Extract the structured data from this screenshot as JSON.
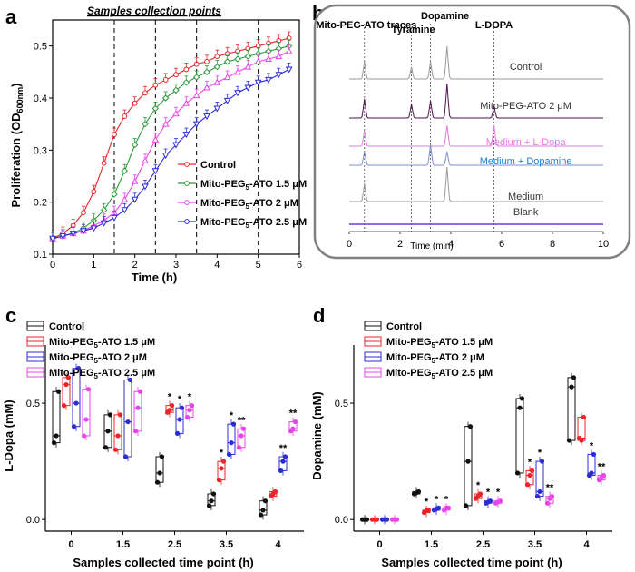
{
  "panels": {
    "a": "a",
    "b": "b",
    "c": "c",
    "d": "d"
  },
  "colors": {
    "black": "#1a1a1a",
    "red": "#e8262a",
    "green": "#2a9a3a",
    "magenta": "#e845e8",
    "blue": "#2b2bd6",
    "c_black": "#111111",
    "c_red": "#e8262a",
    "c_blue": "#2b2bd6",
    "c_magenta": "#e845e8",
    "hplc_grey": "#9a9a9a",
    "hplc_dark": "#4a1050",
    "hplc_pink": "#e27ae2",
    "hplc_lightpink": "#d7a6d7",
    "hplc_blue": "#7f8fd0",
    "hplc_purple": "#8a2ad6",
    "hplc_blank": "#6a3fd0"
  },
  "chart_data": [
    {
      "id": "a",
      "type": "line",
      "title": "Samples collection points",
      "xlabel": "Time (h)",
      "ylabel": "Proliferation (OD600nm)",
      "xlim": [
        0,
        6
      ],
      "ylim": [
        0.1,
        0.55
      ],
      "xticks": [
        "0",
        "1",
        "2",
        "3",
        "4",
        "5",
        "6"
      ],
      "yticks": [
        "0.1",
        "0.2",
        "0.3",
        "0.4",
        "0.5"
      ],
      "vlines": [
        1.5,
        2.5,
        3.5,
        5.0
      ],
      "x": [
        0.0,
        0.25,
        0.5,
        0.75,
        1.0,
        1.25,
        1.5,
        1.75,
        2.0,
        2.25,
        2.5,
        2.75,
        3.0,
        3.25,
        3.5,
        3.75,
        4.0,
        4.25,
        4.5,
        4.75,
        5.0,
        5.25,
        5.5,
        5.75
      ],
      "series": [
        {
          "name": "Control",
          "color": "red",
          "marker": "circle",
          "values": [
            0.13,
            0.14,
            0.155,
            0.18,
            0.22,
            0.275,
            0.33,
            0.365,
            0.39,
            0.41,
            0.425,
            0.435,
            0.445,
            0.455,
            0.465,
            0.47,
            0.48,
            0.485,
            0.49,
            0.495,
            0.5,
            0.505,
            0.51,
            0.515
          ]
        },
        {
          "name": "Mito-PEG5-ATO 1.5 μM",
          "color": "green",
          "marker": "diamond",
          "values": [
            0.13,
            0.135,
            0.14,
            0.15,
            0.165,
            0.185,
            0.215,
            0.26,
            0.31,
            0.35,
            0.38,
            0.4,
            0.415,
            0.43,
            0.44,
            0.45,
            0.46,
            0.47,
            0.475,
            0.48,
            0.485,
            0.49,
            0.495,
            0.5
          ]
        },
        {
          "name": "Mito-PEG5-ATO 2 μM",
          "color": "magenta",
          "marker": "triangle",
          "values": [
            0.13,
            0.135,
            0.14,
            0.145,
            0.155,
            0.165,
            0.18,
            0.205,
            0.24,
            0.28,
            0.32,
            0.35,
            0.37,
            0.39,
            0.405,
            0.42,
            0.43,
            0.44,
            0.45,
            0.46,
            0.47,
            0.475,
            0.48,
            0.49
          ]
        },
        {
          "name": "Mito-PEG5-ATO 2.5 μM",
          "color": "blue",
          "marker": "tri-down",
          "values": [
            0.13,
            0.135,
            0.14,
            0.145,
            0.15,
            0.16,
            0.17,
            0.185,
            0.205,
            0.23,
            0.26,
            0.29,
            0.31,
            0.33,
            0.35,
            0.365,
            0.38,
            0.395,
            0.41,
            0.42,
            0.43,
            0.435,
            0.445,
            0.455
          ]
        }
      ],
      "legend": [
        "Control",
        "Mito-PEG5-ATO 1.5 μM",
        "Mito-PEG5-ATO 2 μM",
        "Mito-PEG5-ATO 2.5 μM"
      ]
    },
    {
      "id": "b",
      "type": "line",
      "xlabel": "Time (min)",
      "xlim": [
        0,
        10
      ],
      "xticks": [
        "0",
        "2",
        "4",
        "6",
        "8",
        "10"
      ],
      "peak_labels": [
        "Mito-PEG-ATO traces",
        "Tyramine",
        "Dopamine",
        "L-DOPA"
      ],
      "peak_positions": [
        0.6,
        2.45,
        3.2,
        5.7
      ],
      "traces": [
        {
          "name": "Control",
          "color": "hplc_grey",
          "label_color": "#333333",
          "peaks": [
            [
              0.6,
              0.5
            ],
            [
              2.45,
              0.35
            ],
            [
              3.2,
              0.5
            ],
            [
              3.85,
              0.95
            ]
          ]
        },
        {
          "name": "Mito-PEG-ATO 2 μM",
          "color": "hplc_dark",
          "label_color": "#333333",
          "peaks": [
            [
              0.6,
              0.55
            ],
            [
              2.45,
              0.4
            ],
            [
              3.2,
              0.5
            ],
            [
              3.85,
              1.0
            ],
            [
              5.7,
              0.35
            ]
          ]
        },
        {
          "name": "Medium + L-Dopa",
          "color": "hplc_pink",
          "label_color": "#e27ae2",
          "peaks": [
            [
              0.6,
              0.45
            ],
            [
              3.85,
              0.6
            ],
            [
              5.7,
              0.6
            ]
          ]
        },
        {
          "name": "Medium + Dopamine",
          "color": "hplc_blue",
          "label_color": "#1f7fc7",
          "peaks": [
            [
              0.6,
              0.4
            ],
            [
              3.2,
              0.6
            ],
            [
              3.85,
              0.4
            ]
          ]
        },
        {
          "name": "Medium",
          "color": "hplc_grey",
          "label_color": "#333333",
          "peaks": [
            [
              0.6,
              0.5
            ],
            [
              3.85,
              1.0
            ]
          ]
        },
        {
          "name": "Blank",
          "color": "hplc_blank",
          "label_color": "#333333",
          "peaks": []
        }
      ]
    },
    {
      "id": "c",
      "type": "box",
      "xlabel": "Samples collected time point (h)",
      "ylabel": "L-Dopa (mM)",
      "ylim": [
        -0.05,
        0.75
      ],
      "yticks": [
        "0.0",
        "0.5"
      ],
      "categories": [
        "0",
        "1.5",
        "2.5",
        "3.5",
        "4"
      ],
      "legend": [
        "Control",
        "Mito-PEG5-ATO 1.5 μM",
        "Mito-PEG5-ATO 2 μM",
        "Mito-PEG5-ATO 2.5 μM"
      ],
      "series": [
        {
          "name": "Control",
          "color": "c_black",
          "groups": [
            [
              0.33,
              0.36,
              0.55
            ],
            [
              0.31,
              0.38,
              0.45
            ],
            [
              0.16,
              0.2,
              0.27
            ],
            [
              0.06,
              0.08,
              0.11
            ],
            [
              0.02,
              0.04,
              0.08
            ]
          ]
        },
        {
          "name": "Mito-PEG5-ATO 1.5 μM",
          "color": "c_red",
          "groups": [
            [
              0.49,
              0.58,
              0.61
            ],
            [
              0.3,
              0.36,
              0.45
            ],
            [
              0.46,
              0.47,
              0.49
            ],
            [
              0.17,
              0.22,
              0.25
            ],
            [
              0.1,
              0.11,
              0.12
            ]
          ]
        },
        {
          "name": "Mito-PEG5-ATO 2 μM",
          "color": "c_blue",
          "groups": [
            [
              0.4,
              0.5,
              0.65
            ],
            [
              0.27,
              0.42,
              0.6
            ],
            [
              0.37,
              0.43,
              0.48
            ],
            [
              0.28,
              0.33,
              0.41
            ],
            [
              0.21,
              0.25,
              0.27
            ]
          ]
        },
        {
          "name": "Mito-PEG5-ATO 2.5 μM",
          "color": "c_magenta",
          "groups": [
            [
              0.36,
              0.43,
              0.56
            ],
            [
              0.38,
              0.48,
              0.55
            ],
            [
              0.44,
              0.47,
              0.49
            ],
            [
              0.31,
              0.36,
              0.39
            ],
            [
              0.38,
              0.39,
              0.42
            ]
          ]
        }
      ],
      "stars": [
        {
          "cat": 2,
          "series": 1,
          "text": "*"
        },
        {
          "cat": 2,
          "series": 2,
          "text": "*"
        },
        {
          "cat": 2,
          "series": 3,
          "text": "*"
        },
        {
          "cat": 3,
          "series": 1,
          "text": "*"
        },
        {
          "cat": 3,
          "series": 2,
          "text": "*"
        },
        {
          "cat": 3,
          "series": 3,
          "text": "**"
        },
        {
          "cat": 4,
          "series": 2,
          "text": "**"
        },
        {
          "cat": 4,
          "series": 3,
          "text": "**"
        }
      ]
    },
    {
      "id": "d",
      "type": "box",
      "xlabel": "Samples collected time point (h)",
      "ylabel": "Dopamine (mM)",
      "ylim": [
        -0.05,
        0.75
      ],
      "yticks": [
        "0.0",
        "0.5"
      ],
      "categories": [
        "0",
        "1.5",
        "2.5",
        "3.5",
        "4"
      ],
      "legend": [
        "Control",
        "Mito-PEG5-ATO 1.5 μM",
        "Mito-PEG5-ATO 2 μM",
        "Mito-PEG5-ATO 2.5 μM"
      ],
      "series": [
        {
          "name": "Control",
          "color": "c_black",
          "groups": [
            [
              0.0,
              0.0,
              0.0
            ],
            [
              0.11,
              0.115,
              0.12
            ],
            [
              0.06,
              0.25,
              0.4
            ],
            [
              0.2,
              0.48,
              0.52
            ],
            [
              0.34,
              0.57,
              0.61
            ]
          ]
        },
        {
          "name": "Mito-PEG5-ATO 1.5 μM",
          "color": "c_red",
          "groups": [
            [
              0.0,
              0.0,
              0.0
            ],
            [
              0.03,
              0.04,
              0.04
            ],
            [
              0.09,
              0.1,
              0.11
            ],
            [
              0.15,
              0.19,
              0.21
            ],
            [
              0.35,
              0.34,
              0.44
            ]
          ]
        },
        {
          "name": "Mito-PEG5-ATO 2 μM",
          "color": "c_blue",
          "groups": [
            [
              0.0,
              0.0,
              0.0
            ],
            [
              0.04,
              0.045,
              0.05
            ],
            [
              0.07,
              0.075,
              0.08
            ],
            [
              0.1,
              0.12,
              0.25
            ],
            [
              0.19,
              0.2,
              0.28
            ]
          ]
        },
        {
          "name": "Mito-PEG5-ATO 2.5 μM",
          "color": "c_magenta",
          "groups": [
            [
              0.0,
              0.0,
              0.0
            ],
            [
              0.04,
              0.05,
              0.05
            ],
            [
              0.07,
              0.075,
              0.08
            ],
            [
              0.07,
              0.09,
              0.1
            ],
            [
              0.17,
              0.18,
              0.19
            ]
          ]
        }
      ],
      "stars": [
        {
          "cat": 1,
          "series": 1,
          "text": "*"
        },
        {
          "cat": 1,
          "series": 2,
          "text": "*"
        },
        {
          "cat": 1,
          "series": 3,
          "text": "*"
        },
        {
          "cat": 2,
          "series": 1,
          "text": "*"
        },
        {
          "cat": 2,
          "series": 2,
          "text": "*"
        },
        {
          "cat": 2,
          "series": 3,
          "text": "*"
        },
        {
          "cat": 3,
          "series": 1,
          "text": "*"
        },
        {
          "cat": 3,
          "series": 2,
          "text": "*"
        },
        {
          "cat": 3,
          "series": 3,
          "text": "**"
        },
        {
          "cat": 4,
          "series": 2,
          "text": "*"
        },
        {
          "cat": 4,
          "series": 3,
          "text": "**"
        }
      ]
    }
  ]
}
